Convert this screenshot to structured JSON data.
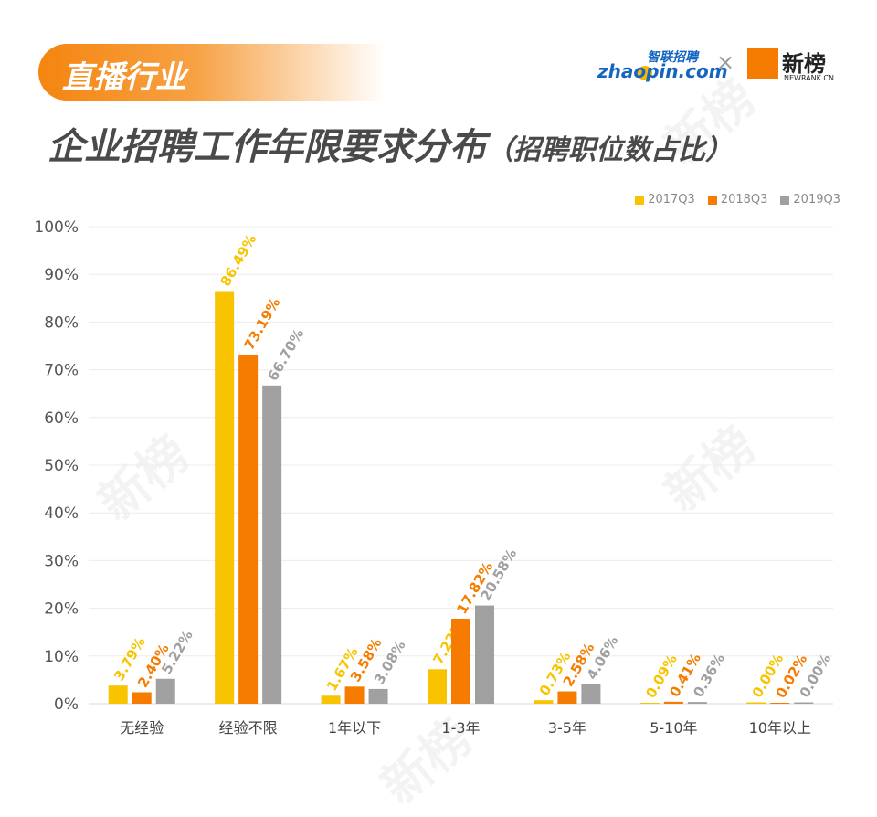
{
  "header": {
    "tag": "直播行业",
    "title": "企业招聘工作年限要求分布",
    "subtitle": "（招聘职位数占比）"
  },
  "logos": {
    "zhaopin_cn": "智联招聘",
    "zhaopin_en": "zhaopin.com",
    "separator": "×",
    "newrank_cn": "新榜",
    "newrank_en": "NEWRANK.CN"
  },
  "watermark_text": "新榜",
  "colors": {
    "2017Q3": "#f8c400",
    "2018Q3": "#f57c00",
    "2019Q3": "#a0a0a0",
    "accent": "#f5850f"
  },
  "chart_data": {
    "type": "bar",
    "title": "企业招聘工作年限要求分布（招聘职位数占比）",
    "xlabel": "",
    "ylabel": "",
    "ylim": [
      0,
      100
    ],
    "y_ticks": [
      "0%",
      "10%",
      "20%",
      "30%",
      "40%",
      "50%",
      "60%",
      "70%",
      "80%",
      "90%",
      "100%"
    ],
    "grid": true,
    "legend_position": "top-right",
    "categories": [
      "无经验",
      "经验不限",
      "1年以下",
      "1-3年",
      "3-5年",
      "5-10年",
      "10年以上"
    ],
    "series": [
      {
        "name": "2017Q3",
        "values": [
          3.79,
          86.49,
          1.67,
          7.22,
          0.73,
          0.09,
          0.0
        ],
        "labels": [
          "3.79%",
          "86.49%",
          "1.67%",
          "7.22%",
          "0.73%",
          "0.09%",
          "0.00%"
        ]
      },
      {
        "name": "2018Q3",
        "values": [
          2.4,
          73.19,
          3.58,
          17.82,
          2.58,
          0.41,
          0.02
        ],
        "labels": [
          "2.40%",
          "73.19%",
          "3.58%",
          "17.82%",
          "2.58%",
          "0.41%",
          "0.02%"
        ]
      },
      {
        "name": "2019Q3",
        "values": [
          5.22,
          66.7,
          3.08,
          20.58,
          4.06,
          0.36,
          0.0
        ],
        "labels": [
          "5.22%",
          "66.70%",
          "3.08%",
          "20.58%",
          "4.06%",
          "0.36%",
          "0.00%"
        ]
      }
    ]
  }
}
